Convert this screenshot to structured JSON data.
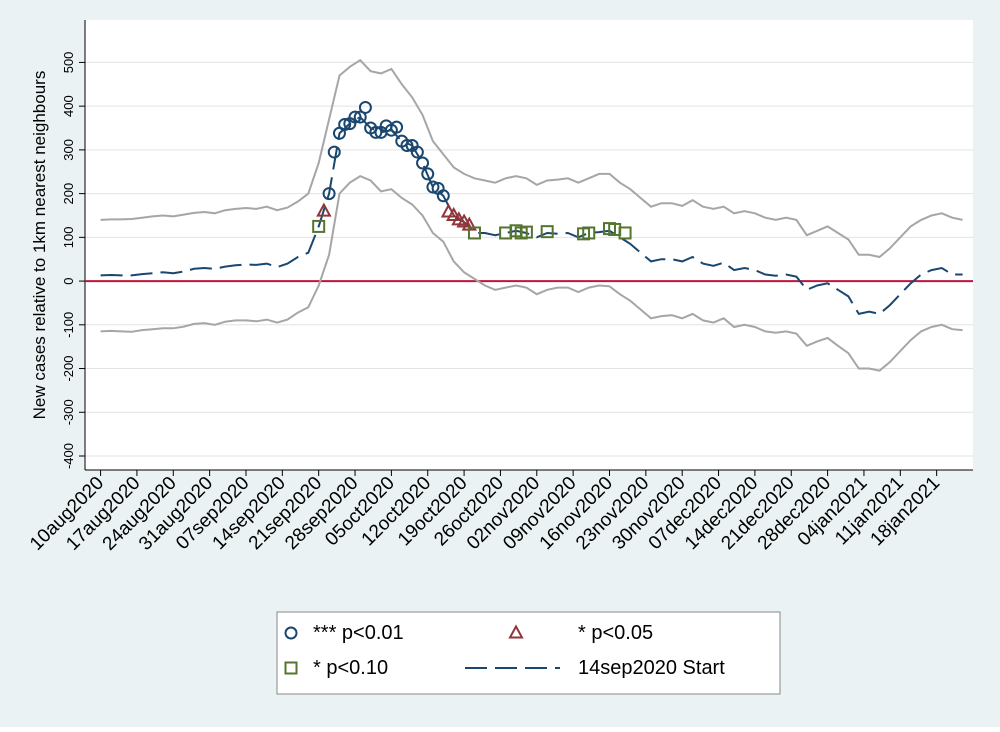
{
  "chart_data": {
    "type": "line",
    "ylabel": "New cases relative to 1km nearest neighbours",
    "xlim": [
      "2020-08-07",
      "2021-01-25"
    ],
    "ylim": [
      -432,
      597
    ],
    "yticks": [
      -400,
      -300,
      -200,
      -100,
      0,
      100,
      200,
      300,
      400,
      500
    ],
    "grid": true,
    "reference_line": {
      "value": 0,
      "color": "#c0143c"
    },
    "xticks": [
      {
        "value": "2020-08-10",
        "label": "10aug2020"
      },
      {
        "value": "2020-08-17",
        "label": "17aug2020"
      },
      {
        "value": "2020-08-24",
        "label": "24aug2020"
      },
      {
        "value": "2020-08-31",
        "label": "31aug2020"
      },
      {
        "value": "2020-09-07",
        "label": "07sep2020"
      },
      {
        "value": "2020-09-14",
        "label": "14sep2020"
      },
      {
        "value": "2020-09-21",
        "label": "21sep2020"
      },
      {
        "value": "2020-09-28",
        "label": "28sep2020"
      },
      {
        "value": "2020-10-05",
        "label": "05oct2020"
      },
      {
        "value": "2020-10-12",
        "label": "12oct2020"
      },
      {
        "value": "2020-10-19",
        "label": "19oct2020"
      },
      {
        "value": "2020-10-26",
        "label": "26oct2020"
      },
      {
        "value": "2020-11-02",
        "label": "02nov2020"
      },
      {
        "value": "2020-11-09",
        "label": "09nov2020"
      },
      {
        "value": "2020-11-16",
        "label": "16nov2020"
      },
      {
        "value": "2020-11-23",
        "label": "23nov2020"
      },
      {
        "value": "2020-11-30",
        "label": "30nov2020"
      },
      {
        "value": "2020-12-07",
        "label": "07dec2020"
      },
      {
        "value": "2020-12-14",
        "label": "14dec2020"
      },
      {
        "value": "2020-12-21",
        "label": "21dec2020"
      },
      {
        "value": "2020-12-28",
        "label": "28dec2020"
      },
      {
        "value": "2021-01-04",
        "label": "04jan2021"
      },
      {
        "value": "2021-01-11",
        "label": "11jan2021"
      },
      {
        "value": "2021-01-18",
        "label": "18jan2021"
      }
    ],
    "x": [
      "2020-08-10",
      "2020-08-12",
      "2020-08-14",
      "2020-08-16",
      "2020-08-18",
      "2020-08-20",
      "2020-08-22",
      "2020-08-24",
      "2020-08-26",
      "2020-08-28",
      "2020-08-30",
      "2020-09-01",
      "2020-09-03",
      "2020-09-05",
      "2020-09-07",
      "2020-09-09",
      "2020-09-11",
      "2020-09-13",
      "2020-09-15",
      "2020-09-17",
      "2020-09-19",
      "2020-09-21",
      "2020-09-23",
      "2020-09-25",
      "2020-09-27",
      "2020-09-29",
      "2020-10-01",
      "2020-10-03",
      "2020-10-05",
      "2020-10-07",
      "2020-10-09",
      "2020-10-11",
      "2020-10-13",
      "2020-10-15",
      "2020-10-17",
      "2020-10-19",
      "2020-10-21",
      "2020-10-23",
      "2020-10-25",
      "2020-10-27",
      "2020-10-29",
      "2020-10-31",
      "2020-11-02",
      "2020-11-04",
      "2020-11-06",
      "2020-11-08",
      "2020-11-10",
      "2020-11-12",
      "2020-11-14",
      "2020-11-16",
      "2020-11-18",
      "2020-11-20",
      "2020-11-22",
      "2020-11-24",
      "2020-11-26",
      "2020-11-28",
      "2020-11-30",
      "2020-12-02",
      "2020-12-04",
      "2020-12-06",
      "2020-12-08",
      "2020-12-10",
      "2020-12-12",
      "2020-12-14",
      "2020-12-16",
      "2020-12-18",
      "2020-12-20",
      "2020-12-22",
      "2020-12-24",
      "2020-12-26",
      "2020-12-28",
      "2020-12-30",
      "2021-01-01",
      "2021-01-03",
      "2021-01-05",
      "2021-01-07",
      "2021-01-09",
      "2021-01-11",
      "2021-01-13",
      "2021-01-15",
      "2021-01-17",
      "2021-01-19",
      "2021-01-21",
      "2021-01-23"
    ],
    "series": [
      {
        "color": "#a6a6a6",
        "values": [
          140,
          141,
          141,
          142,
          145,
          148,
          150,
          148,
          152,
          156,
          158,
          155,
          162,
          165,
          167,
          165,
          170,
          162,
          168,
          182,
          200,
          270,
          370,
          470,
          490,
          505,
          480,
          475,
          485,
          450,
          420,
          380,
          320,
          290,
          260,
          245,
          235,
          230,
          225,
          235,
          240,
          235,
          220,
          230,
          232,
          235,
          225,
          235,
          245,
          245,
          225,
          210,
          190,
          170,
          178,
          178,
          172,
          185,
          170,
          165,
          170,
          155,
          160,
          155,
          145,
          140,
          145,
          140,
          105,
          115,
          125,
          110,
          95,
          60,
          60,
          55,
          75,
          100,
          125,
          140,
          150,
          155,
          145,
          140
        ]
      },
      {
        "color": "#a6a6a6",
        "values": [
          -115,
          -114,
          -115,
          -116,
          -112,
          -110,
          -108,
          -108,
          -104,
          -98,
          -96,
          -100,
          -93,
          -90,
          -90,
          -92,
          -88,
          -95,
          -88,
          -72,
          -60,
          -10,
          60,
          200,
          225,
          240,
          230,
          205,
          210,
          190,
          175,
          150,
          110,
          90,
          45,
          20,
          5,
          -10,
          -20,
          -15,
          -10,
          -15,
          -30,
          -20,
          -15,
          -15,
          -25,
          -15,
          -10,
          -12,
          -30,
          -45,
          -65,
          -85,
          -80,
          -78,
          -85,
          -75,
          -90,
          -95,
          -85,
          -105,
          -100,
          -105,
          -115,
          -118,
          -115,
          -120,
          -148,
          -138,
          -130,
          -148,
          -165,
          -200,
          -200,
          -205,
          -185,
          -160,
          -135,
          -115,
          -105,
          -100,
          -110,
          -112
        ]
      },
      {
        "name": "14sep2020 Start",
        "color": "#1a476f",
        "dash": "long",
        "values": [
          13,
          14,
          13,
          13,
          16,
          18,
          20,
          18,
          22,
          28,
          30,
          28,
          33,
          36,
          38,
          37,
          40,
          32,
          40,
          55,
          65,
          125,
          200,
          338,
          360,
          375,
          350,
          340,
          345,
          320,
          310,
          270,
          215,
          195,
          150,
          135,
          110,
          110,
          105,
          110,
          115,
          110,
          100,
          110,
          108,
          110,
          100,
          110,
          112,
          115,
          100,
          85,
          65,
          45,
          50,
          50,
          45,
          55,
          40,
          35,
          42,
          25,
          30,
          25,
          15,
          12,
          15,
          10,
          -20,
          -10,
          -5,
          -20,
          -35,
          -75,
          -70,
          -75,
          -55,
          -30,
          -5,
          15,
          25,
          30,
          15,
          15
        ]
      }
    ],
    "marker_series": [
      {
        "name": "*** p<0.01",
        "marker": "circle",
        "color": "#1a476f",
        "x": [
          "2020-09-23",
          "2020-09-24",
          "2020-09-25",
          "2020-09-26",
          "2020-09-27",
          "2020-09-28",
          "2020-09-29",
          "2020-09-30",
          "2020-10-01",
          "2020-10-02",
          "2020-10-03",
          "2020-10-04",
          "2020-10-05",
          "2020-10-06",
          "2020-10-07",
          "2020-10-08",
          "2020-10-09",
          "2020-10-10",
          "2020-10-11",
          "2020-10-12",
          "2020-10-13",
          "2020-10-14",
          "2020-10-15"
        ],
        "values": [
          200,
          295,
          338,
          358,
          360,
          375,
          375,
          397,
          350,
          340,
          340,
          355,
          345,
          352,
          320,
          310,
          310,
          295,
          270,
          245,
          215,
          212,
          195
        ]
      },
      {
        "name": "* p<0.05",
        "marker": "triangle",
        "color": "#90353b",
        "x": [
          "2020-09-22",
          "2020-10-16",
          "2020-10-17",
          "2020-10-18",
          "2020-10-19",
          "2020-10-20"
        ],
        "values": [
          160,
          158,
          150,
          140,
          135,
          128
        ]
      },
      {
        "name": "* p<0.10",
        "marker": "square",
        "color": "#55752f",
        "x": [
          "2020-09-21",
          "2020-10-21",
          "2020-10-27",
          "2020-10-29",
          "2020-10-30",
          "2020-10-31",
          "2020-11-04",
          "2020-11-11",
          "2020-11-12",
          "2020-11-16",
          "2020-11-17",
          "2020-11-19"
        ],
        "values": [
          125,
          110,
          110,
          115,
          110,
          112,
          113,
          108,
          110,
          120,
          118,
          110
        ]
      }
    ]
  }
}
